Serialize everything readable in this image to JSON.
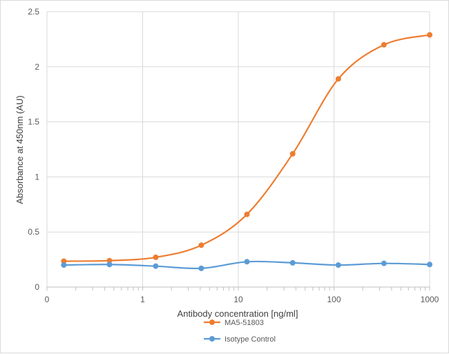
{
  "chart_data": {
    "type": "line",
    "xlabel": "Antibody concentration [ng/ml]",
    "ylabel": "Absorbance at 450nm (AU)",
    "x_scale": "log",
    "xlim": [
      0.1,
      1000
    ],
    "ylim": [
      0,
      2.5
    ],
    "x_ticks": [
      0.1,
      1,
      10,
      100,
      1000
    ],
    "x_tick_labels": [
      "0",
      "1",
      "10",
      "100",
      "1000"
    ],
    "y_ticks": [
      0,
      0.5,
      1,
      1.5,
      2,
      2.5
    ],
    "y_tick_labels": [
      "0",
      "0.5",
      "1",
      "1.5",
      "2",
      "2.5"
    ],
    "grid": true,
    "legend_position": "bottom",
    "x": [
      0.15,
      0.45,
      1.37,
      4.1,
      12.3,
      37,
      111,
      333,
      1000
    ],
    "series": [
      {
        "name": "MA5-51803",
        "color": "#ED7D31",
        "values": [
          0.235,
          0.24,
          0.27,
          0.38,
          0.66,
          1.21,
          1.89,
          2.2,
          2.29
        ]
      },
      {
        "name": "Isotype Control",
        "color": "#5B9BD5",
        "values": [
          0.2,
          0.205,
          0.19,
          0.17,
          0.23,
          0.22,
          0.2,
          0.215,
          0.205
        ]
      }
    ]
  }
}
